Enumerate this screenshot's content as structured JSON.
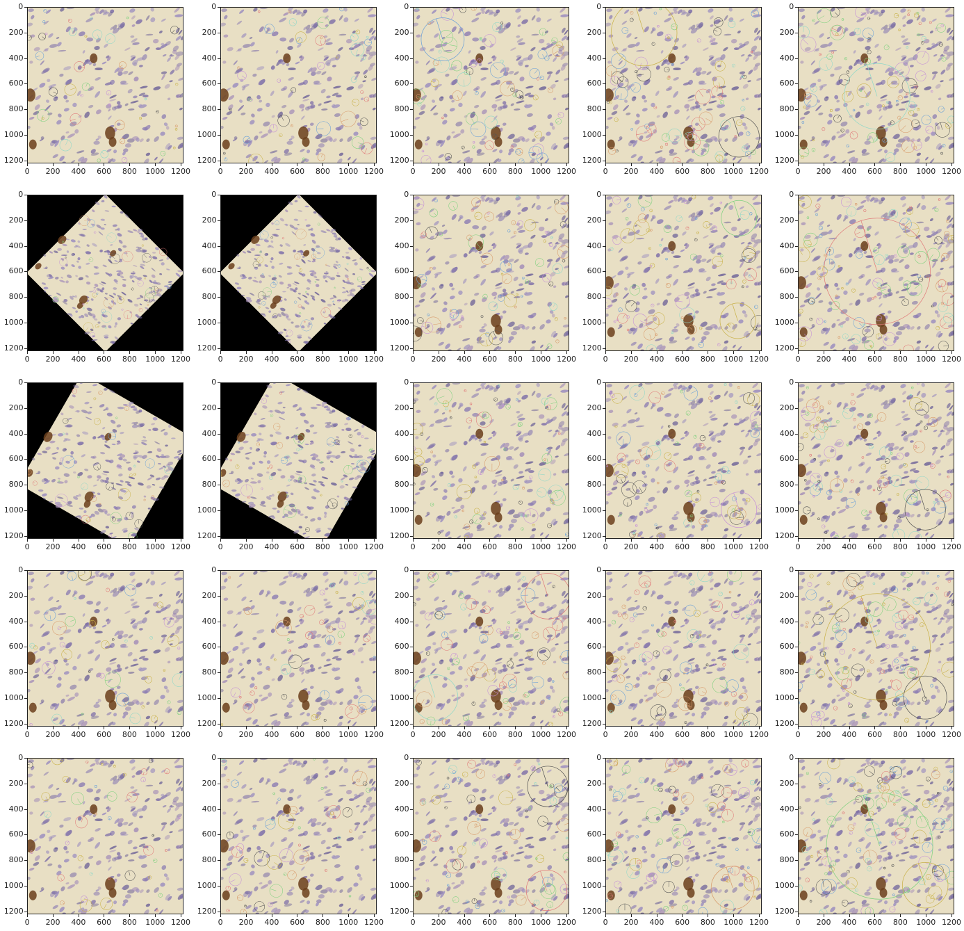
{
  "figure": {
    "rows": 5,
    "cols": 5,
    "x_ticks": [
      "0",
      "200",
      "400",
      "600",
      "800",
      "1000",
      "1200"
    ],
    "y_ticks": [
      "0",
      "200",
      "400",
      "600",
      "800",
      "1000",
      "1200"
    ],
    "image_size": [
      1224,
      1224
    ],
    "tissue_bg": "#e8dfc4",
    "nucleus_colors": [
      "#8e7fb3",
      "#7d6ea8",
      "#9a8cbf",
      "#6f6499",
      "#a58fb8"
    ],
    "stain_brown": "#6b3f1c",
    "keypoint_colors": [
      "#7fd17f",
      "#e07a7a",
      "#6aa0d8",
      "#c9b24a",
      "#8fd8c8",
      "#c48fd8",
      "#555555",
      "#d89a6a"
    ],
    "panels": [
      {
        "rotation": 0,
        "keypoint_density": 40,
        "large_circles": []
      },
      {
        "rotation": 0,
        "keypoint_density": 45,
        "large_circles": []
      },
      {
        "rotation": 0,
        "keypoint_density": 70,
        "large_circles": [
          [
            230,
            250,
            170
          ]
        ]
      },
      {
        "rotation": 0,
        "keypoint_density": 75,
        "large_circles": [
          [
            300,
            200,
            260
          ],
          [
            1050,
            1020,
            160
          ]
        ]
      },
      {
        "rotation": 0,
        "keypoint_density": 95,
        "large_circles": [
          [
            620,
            700,
            260
          ]
        ]
      },
      {
        "rotation": 45,
        "keypoint_density": 40,
        "large_circles": []
      },
      {
        "rotation": 45,
        "keypoint_density": 45,
        "large_circles": []
      },
      {
        "rotation": 0,
        "keypoint_density": 70,
        "large_circles": []
      },
      {
        "rotation": 0,
        "keypoint_density": 75,
        "large_circles": [
          [
            1050,
            180,
            140
          ],
          [
            1040,
            990,
            140
          ]
        ]
      },
      {
        "rotation": 0,
        "keypoint_density": 95,
        "large_circles": [
          [
            620,
            600,
            420
          ]
        ]
      },
      {
        "rotation": 30,
        "keypoint_density": 40,
        "large_circles": []
      },
      {
        "rotation": 30,
        "keypoint_density": 45,
        "large_circles": []
      },
      {
        "rotation": 0,
        "keypoint_density": 70,
        "large_circles": []
      },
      {
        "rotation": 0,
        "keypoint_density": 75,
        "large_circles": [
          [
            1050,
            1000,
            140
          ]
        ]
      },
      {
        "rotation": 0,
        "keypoint_density": 95,
        "large_circles": [
          [
            1000,
            1000,
            160
          ]
        ]
      },
      {
        "rotation": 0,
        "keypoint_density": 40,
        "large_circles": []
      },
      {
        "rotation": 0,
        "keypoint_density": 45,
        "large_circles": []
      },
      {
        "rotation": 0,
        "keypoint_density": 70,
        "large_circles": [
          [
            1060,
            200,
            180
          ],
          [
            170,
            1000,
            180
          ]
        ]
      },
      {
        "rotation": 0,
        "keypoint_density": 75,
        "large_circles": []
      },
      {
        "rotation": 0,
        "keypoint_density": 95,
        "large_circles": [
          [
            620,
            600,
            420
          ],
          [
            1000,
            1000,
            170
          ]
        ]
      },
      {
        "rotation": 0,
        "keypoint_density": 40,
        "large_circles": []
      },
      {
        "rotation": 0,
        "keypoint_density": 45,
        "large_circles": []
      },
      {
        "rotation": 0,
        "keypoint_density": 70,
        "large_circles": [
          [
            1060,
            220,
            160
          ],
          [
            1050,
            1040,
            160
          ]
        ]
      },
      {
        "rotation": 0,
        "keypoint_density": 75,
        "large_circles": [
          [
            1000,
            1020,
            170
          ]
        ]
      },
      {
        "rotation": 0,
        "keypoint_density": 95,
        "large_circles": [
          [
            640,
            690,
            420
          ],
          [
            1000,
            1000,
            180
          ]
        ]
      }
    ]
  }
}
